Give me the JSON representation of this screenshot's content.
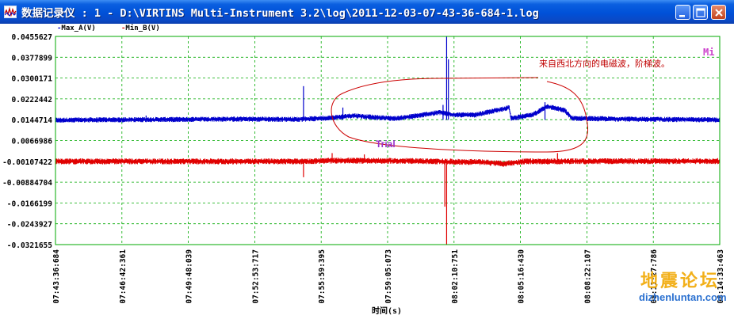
{
  "window": {
    "title": "数据记录仪 : 1 - D:\\VIRTINS Multi-Instrument 3.2\\log\\2011-12-03-07-43-36-684-1.log",
    "icons": {
      "app": "chart-app-icon",
      "minimize": "minimize-icon",
      "maximize": "maximize-icon",
      "close": "close-icon"
    }
  },
  "legend": [
    {
      "name": "Max_A(V)",
      "color": "#0000cc"
    },
    {
      "name": "Min_B(V)",
      "color": "#e00000"
    }
  ],
  "colors": {
    "plot_border": "#00aa00",
    "grid": "#00aa00",
    "series_a": "#0000cc",
    "series_b": "#e00000",
    "annotation_curve": "#cc0000"
  },
  "annotations": {
    "note": "来自西北方向的电磁波，阶梯波。",
    "trial": "Trial",
    "corner": "Mi"
  },
  "watermark": {
    "cn": "地震论坛",
    "url": "dizhenluntan.com"
  },
  "chart_data": {
    "type": "line",
    "title": "",
    "xlabel": "时间(s)",
    "ylabel": "",
    "grid": true,
    "legend_position": "top-left",
    "yticks": [
      "0.0455627",
      "0.0377899",
      "0.0300171",
      "0.0222442",
      "0.0144714",
      "0.0066986",
      "-0.00107422",
      "-0.00884704",
      "-0.0166199",
      "-0.0243927",
      "-0.0321655"
    ],
    "ylim": [
      -0.0321655,
      0.0455627
    ],
    "xticks": [
      "07:43:36:684",
      "07:46:42:361",
      "07:49:48:039",
      "07:52:53:717",
      "07:55:59:395",
      "07:59:05:073",
      "08:02:10:751",
      "08:05:16:430",
      "08:08:22:107",
      "08:11:27:786",
      "08:14:33:463"
    ],
    "series": [
      {
        "name": "Max_A(V)",
        "color": "#0000cc",
        "baseline": 0.0144,
        "noise": 0.0007,
        "points": [
          [
            "07:43:36",
            0.0143
          ],
          [
            "07:48:00",
            0.0145
          ],
          [
            "07:52:00",
            0.0147
          ],
          [
            "07:55:00",
            0.0146
          ],
          [
            "07:56:30",
            0.0152
          ],
          [
            "07:57:30",
            0.016
          ],
          [
            "07:58:30",
            0.0153
          ],
          [
            "07:59:30",
            0.0149
          ],
          [
            "08:00:30",
            0.016
          ],
          [
            "08:01:30",
            0.0172
          ],
          [
            "08:02:10",
            0.0163
          ],
          [
            "08:03:10",
            0.0162
          ],
          [
            "08:04:10",
            0.018
          ],
          [
            "08:04:45",
            0.019
          ],
          [
            "08:04:50",
            0.015
          ],
          [
            "08:05:50",
            0.0162
          ],
          [
            "08:06:30",
            0.0195
          ],
          [
            "08:07:20",
            0.018
          ],
          [
            "08:07:40",
            0.015
          ],
          [
            "08:10:00",
            0.0147
          ],
          [
            "08:14:33",
            0.0144
          ]
        ],
        "spikes": [
          [
            "07:47:50",
            0.016
          ],
          [
            "07:55:10",
            0.027
          ],
          [
            "07:57:00",
            0.019
          ],
          [
            "08:01:50",
            0.0455627
          ],
          [
            "08:01:55",
            0.037
          ],
          [
            "08:01:40",
            0.02
          ],
          [
            "08:06:25",
            0.021
          ]
        ]
      },
      {
        "name": "Min_B(V)",
        "color": "#e00000",
        "baseline": -0.0011,
        "noise": 0.0008,
        "points": [
          [
            "07:43:36",
            -0.0011
          ],
          [
            "07:55:00",
            -0.0011
          ],
          [
            "07:57:00",
            -0.0008
          ],
          [
            "08:00:30",
            -0.001
          ],
          [
            "08:02:00",
            -0.0012
          ],
          [
            "08:03:30",
            -0.0014
          ],
          [
            "08:04:30",
            -0.002
          ],
          [
            "08:05:30",
            -0.0011
          ],
          [
            "08:14:33",
            -0.001
          ]
        ],
        "spikes": [
          [
            "07:55:10",
            -0.007
          ],
          [
            "07:56:30",
            0.002
          ],
          [
            "07:58:00",
            0.0015
          ],
          [
            "08:01:50",
            -0.0321655
          ],
          [
            "08:01:45",
            -0.018
          ],
          [
            "08:07:00",
            0.002
          ]
        ]
      }
    ]
  }
}
